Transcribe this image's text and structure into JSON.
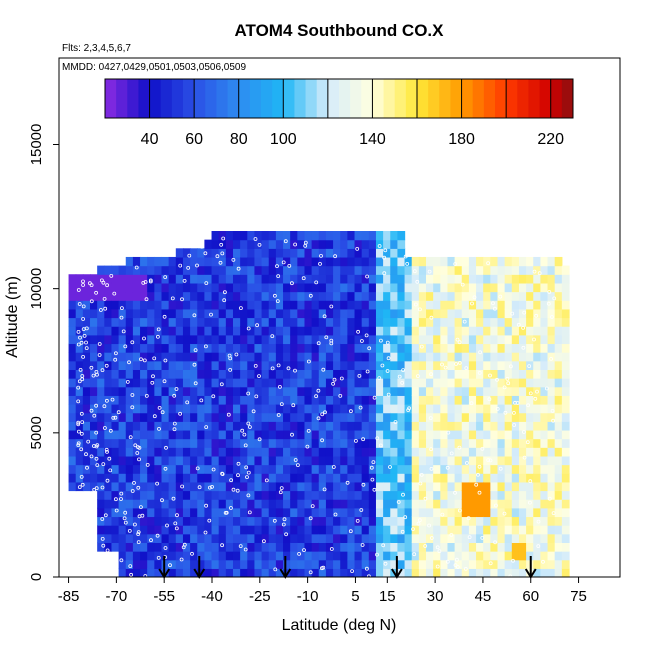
{
  "chart_data": {
    "type": "heatmap",
    "title": "ATOM4 Southbound CO.X",
    "flights_label": "Flts: 2,3,4,5,6,7",
    "dates_label": "MMDD: 0427,0429,0501,0503,0506,0509",
    "xlabel": "Latitude (deg N)",
    "ylabel": "Altitude (m)",
    "xlim": [
      -88,
      88
    ],
    "ylim": [
      0,
      18000
    ],
    "x_ticks": [
      -85,
      -70,
      -55,
      -40,
      -25,
      -10,
      5,
      15,
      30,
      45,
      60,
      75
    ],
    "x_tick_labels": [
      "-85",
      "-70",
      "-55",
      "-40",
      "-25",
      "-10",
      "5",
      "15",
      "30",
      "45",
      "60",
      "75"
    ],
    "y_ticks": [
      0,
      5000,
      10000,
      15000
    ],
    "y_tick_labels": [
      "0",
      "5000",
      "10000",
      "15000"
    ],
    "colorbar": {
      "range": [
        20,
        230
      ],
      "ticks": [
        40,
        60,
        80,
        100,
        140,
        180,
        220
      ],
      "tick_labels": [
        "40",
        "60",
        "80",
        "100",
        "140",
        "180",
        "220"
      ],
      "stops": [
        {
          "value": 20,
          "color": "#8b2be2"
        },
        {
          "value": 40,
          "color": "#1010c8"
        },
        {
          "value": 60,
          "color": "#2a4fe6"
        },
        {
          "value": 80,
          "color": "#2e8cf0"
        },
        {
          "value": 100,
          "color": "#1fb6f5"
        },
        {
          "value": 120,
          "color": "#d6ecfa"
        },
        {
          "value": 140,
          "color": "#ffffe0"
        },
        {
          "value": 160,
          "color": "#ffe838"
        },
        {
          "value": 180,
          "color": "#ff9a00"
        },
        {
          "value": 200,
          "color": "#ff3a00"
        },
        {
          "value": 220,
          "color": "#d00000"
        },
        {
          "value": 230,
          "color": "#8b1010"
        }
      ]
    },
    "arrow_latitudes": [
      -55,
      -44,
      -17,
      18,
      60
    ],
    "field": {
      "lat_range": [
        -85,
        72
      ],
      "alt_range": [
        0,
        12000
      ],
      "n_cols": 70,
      "n_rows": 40,
      "regions": [
        {
          "lat_min": -85,
          "lat_max": 12,
          "value_low": 35,
          "value_high": 72
        },
        {
          "lat_min": 12,
          "lat_max": 22,
          "value_low": 85,
          "value_high": 125
        },
        {
          "lat_min": 22,
          "lat_max": 72,
          "value_low": 115,
          "value_high": 155
        },
        {
          "lat_min": 39,
          "lat_max": 47,
          "alt_min": 2200,
          "alt_max": 3400,
          "value": 180
        },
        {
          "lat_min": 53,
          "lat_max": 58,
          "alt_min": 600,
          "alt_max": 1200,
          "value": 170
        },
        {
          "lat_min": -85,
          "lat_max": -60,
          "alt_min": 9500,
          "alt_max": 10500,
          "value": 25
        }
      ]
    }
  }
}
